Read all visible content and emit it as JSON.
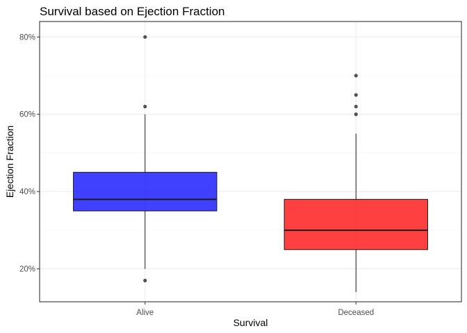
{
  "chart_data": {
    "type": "boxplot",
    "title": "Survival based on Ejection Fraction",
    "xlabel": "Survival",
    "ylabel": "Ejection Fraction",
    "categories": [
      "Alive",
      "Deceased"
    ],
    "ylim": [
      11.5,
      84
    ],
    "yticks": [
      20,
      40,
      60,
      80
    ],
    "ytick_labels": [
      "20%",
      "40%",
      "60%",
      "80%"
    ],
    "grid": true,
    "legend": "none",
    "boxes": [
      {
        "category": "Alive",
        "color": "#0000ff",
        "q1": 35,
        "median": 38,
        "q3": 45,
        "whisker_low": 20,
        "whisker_high": 60,
        "outliers": [
          17,
          62,
          80
        ]
      },
      {
        "category": "Deceased",
        "color": "#ff0000",
        "q1": 25,
        "median": 30,
        "q3": 38,
        "whisker_low": 14,
        "whisker_high": 55,
        "outliers": [
          60,
          62,
          65,
          70
        ]
      }
    ]
  }
}
